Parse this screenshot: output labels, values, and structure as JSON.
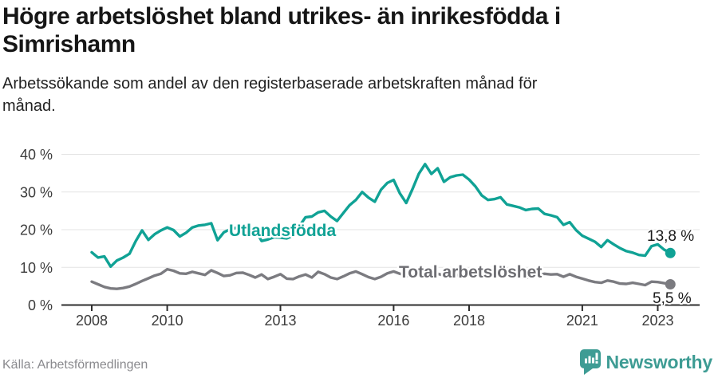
{
  "header": {
    "title_lines": [
      "Högre arbetslöshet bland utrikes- än inrikesfödda i",
      "Simrishamn"
    ],
    "subtitle_lines": [
      "Arbetssökande som andel av den registerbaserade arbetskraften månad för",
      "månad."
    ]
  },
  "footer": {
    "source": "Källa: Arbetsförmedlingen",
    "brand": "Newsworthy"
  },
  "colors": {
    "teal_line": "#10A295",
    "gray_line": "#7B7B80",
    "gray_label": "#6E6E73",
    "grid": "#E3E3E3",
    "axis": "#2E2E2E",
    "tick_text": "#3C3C3C",
    "value_label": "#1A1A1A",
    "brand_teal": "#3E9C94",
    "source_text": "#8A8A8E"
  },
  "chart_data": {
    "type": "line",
    "title": "Högre arbetslöshet bland utrikes- än inrikesfödda i Simrishamn",
    "subtitle": "Arbetssökande som andel av den registerbaserade arbetskraften månad för månad.",
    "xlabel": "",
    "ylabel": "",
    "x_start": 2008.0,
    "x_step": 0.166667,
    "xlim": [
      2007.2,
      2024.1
    ],
    "ylim": [
      0,
      42
    ],
    "grid": "horizontal",
    "legend_position": "inline-labels",
    "y_ticks": [
      0,
      10,
      20,
      30,
      40
    ],
    "y_tick_labels": [
      "0 %",
      "10 %",
      "20 %",
      "30 %",
      "40 %"
    ],
    "x_ticks": [
      2008,
      2010,
      2013,
      2016,
      2018,
      2021,
      2023
    ],
    "x_tick_labels": [
      "2008",
      "2010",
      "2013",
      "2016",
      "2018",
      "2021",
      "2023"
    ],
    "series": [
      {
        "name": "Utlandsfödda",
        "color": "#10A295",
        "end_value": 13.8,
        "end_label": "13,8 %",
        "values": [
          14.0,
          12.6,
          12.9,
          10.2,
          11.8,
          12.6,
          13.6,
          17.0,
          19.8,
          17.3,
          18.8,
          19.8,
          20.6,
          19.9,
          18.2,
          19.2,
          20.6,
          21.1,
          21.3,
          21.7,
          17.2,
          19.3,
          20.1,
          20.5,
          20.4,
          21.0,
          19.9,
          17.0,
          17.4,
          18.0,
          17.9,
          17.7,
          18.4,
          20.9,
          23.3,
          23.5,
          24.6,
          25.0,
          23.5,
          22.3,
          24.4,
          26.5,
          27.9,
          30.0,
          28.5,
          27.4,
          30.6,
          32.4,
          33.2,
          29.6,
          27.1,
          30.8,
          34.8,
          37.4,
          34.8,
          36.3,
          32.7,
          33.9,
          34.4,
          34.6,
          33.3,
          31.5,
          29.1,
          27.9,
          28.1,
          28.6,
          26.7,
          26.3,
          25.9,
          25.2,
          25.5,
          25.6,
          24.2,
          23.8,
          23.3,
          21.3,
          22.0,
          19.9,
          18.4,
          17.6,
          16.8,
          15.4,
          17.2,
          16.1,
          15.1,
          14.3,
          13.9,
          13.3,
          13.1,
          15.6,
          16.1,
          14.7,
          13.8
        ]
      },
      {
        "name": "Total arbetslöshet",
        "color": "#7B7B80",
        "end_value": 5.5,
        "end_label": "5,5 %",
        "values": [
          6.2,
          5.5,
          4.8,
          4.4,
          4.3,
          4.5,
          4.9,
          5.6,
          6.4,
          7.1,
          7.8,
          8.3,
          9.5,
          9.1,
          8.4,
          8.3,
          8.8,
          8.4,
          8.0,
          9.2,
          8.5,
          7.7,
          7.9,
          8.5,
          8.6,
          8.0,
          7.3,
          8.1,
          6.9,
          7.5,
          8.2,
          7.0,
          6.9,
          7.6,
          8.1,
          7.3,
          8.8,
          8.2,
          7.3,
          6.9,
          7.6,
          8.4,
          8.9,
          8.2,
          7.4,
          6.9,
          7.5,
          8.4,
          8.9,
          8.3,
          7.8,
          7.6,
          8.3,
          9.2,
          8.9,
          8.3,
          7.8,
          7.5,
          7.9,
          8.3,
          8.5,
          8.0,
          7.5,
          7.2,
          7.7,
          8.1,
          8.3,
          7.8,
          7.4,
          7.2,
          7.6,
          8.0,
          8.3,
          8.1,
          8.2,
          7.5,
          8.2,
          7.5,
          7.0,
          6.5,
          6.1,
          5.9,
          6.5,
          6.2,
          5.7,
          5.6,
          5.9,
          5.6,
          5.3,
          6.2,
          6.1,
          5.8,
          5.5
        ]
      }
    ]
  }
}
